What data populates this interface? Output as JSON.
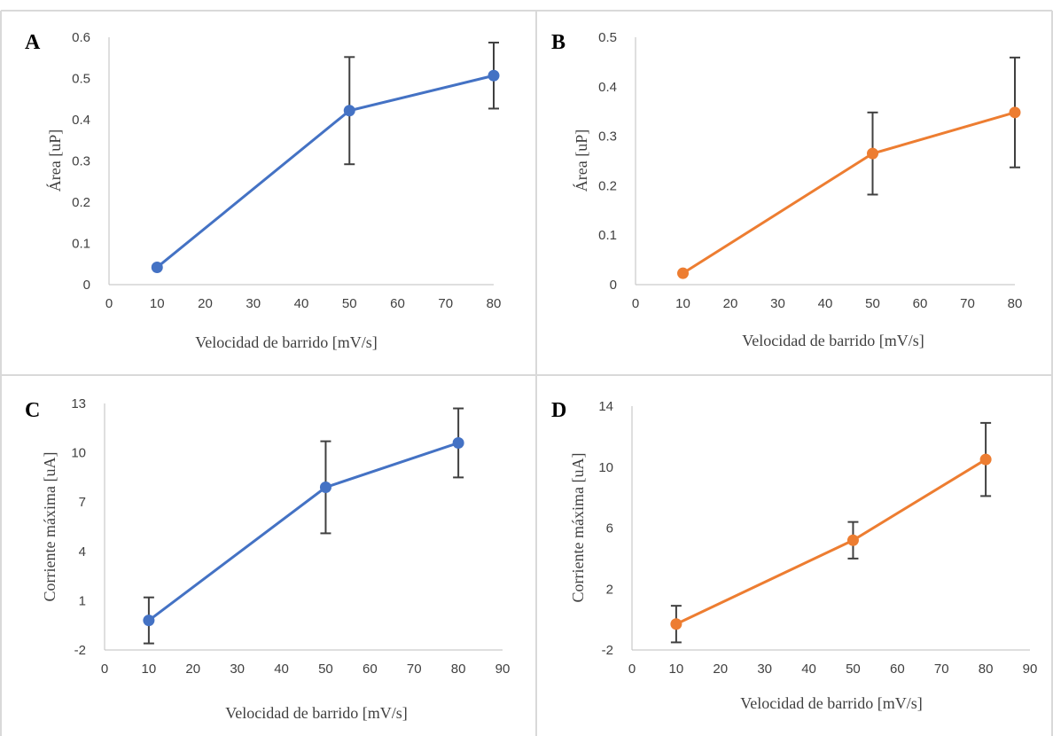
{
  "chart_data": [
    {
      "type": "line",
      "panel": "A",
      "x": [
        10,
        50,
        80
      ],
      "series": [
        {
          "values": [
            0.042,
            0.422,
            0.507
          ],
          "errors": [
            0.0,
            0.13,
            0.08
          ]
        }
      ],
      "xlabel": "Velocidad de barrido [mV/s]",
      "ylabel": "Área [uP]",
      "xlim": [
        0,
        80
      ],
      "ylim": [
        0,
        0.6
      ],
      "xticks": [
        "0",
        "10",
        "20",
        "30",
        "40",
        "50",
        "60",
        "70",
        "80"
      ],
      "yticks": [
        "0",
        "0.1",
        "0.2",
        "0.3",
        "0.4",
        "0.5",
        "0.6"
      ],
      "grid": false,
      "color": "#4472c4"
    },
    {
      "type": "line",
      "panel": "B",
      "x": [
        10,
        50,
        80
      ],
      "series": [
        {
          "values": [
            0.023,
            0.265,
            0.348
          ],
          "errors": [
            0.0,
            0.083,
            0.111
          ]
        }
      ],
      "xlabel": "Velocidad de barrido [mV/s]",
      "ylabel": "Área [uP]",
      "xlim": [
        0,
        80
      ],
      "ylim": [
        0,
        0.5
      ],
      "xticks": [
        "0",
        "10",
        "20",
        "30",
        "40",
        "50",
        "60",
        "70",
        "80"
      ],
      "yticks": [
        "0",
        "0.1",
        "0.2",
        "0.3",
        "0.4",
        "0.5"
      ],
      "grid": false,
      "color": "#ed7d31"
    },
    {
      "type": "line",
      "panel": "C",
      "x": [
        10,
        50,
        80
      ],
      "series": [
        {
          "values": [
            -0.2,
            7.9,
            10.6
          ],
          "errors": [
            1.4,
            2.8,
            2.1
          ]
        }
      ],
      "xlabel": "Velocidad de barrido [mV/s]",
      "ylabel": "Corriente máxima  [uA]",
      "xlim": [
        0,
        90
      ],
      "ylim": [
        -2,
        13
      ],
      "xticks": [
        "0",
        "10",
        "20",
        "30",
        "40",
        "50",
        "60",
        "70",
        "80",
        "90"
      ],
      "yticks": [
        "-2",
        "1",
        "4",
        "7",
        "10",
        "13"
      ],
      "grid": false,
      "color": "#4472c4"
    },
    {
      "type": "line",
      "panel": "D",
      "x": [
        10,
        50,
        80
      ],
      "series": [
        {
          "values": [
            -0.3,
            5.2,
            10.5
          ],
          "errors": [
            1.2,
            1.2,
            2.4
          ]
        }
      ],
      "xlabel": "Velocidad de barrido [mV/s]",
      "ylabel": "Corriente máxima  [uA]",
      "xlim": [
        0,
        90
      ],
      "ylim": [
        -2,
        14
      ],
      "xticks": [
        "0",
        "10",
        "20",
        "30",
        "40",
        "50",
        "60",
        "70",
        "80",
        "90"
      ],
      "yticks": [
        "-2",
        "2",
        "6",
        "10",
        "14"
      ],
      "grid": false,
      "color": "#ed7d31"
    }
  ]
}
